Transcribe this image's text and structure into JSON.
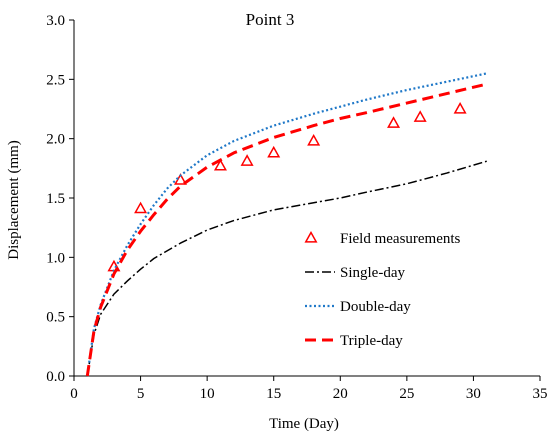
{
  "chart_data": {
    "type": "line",
    "title": "Point 3",
    "xlabel": "Time (Day)",
    "ylabel": "Displacement (mm)",
    "xlim": [
      0,
      35
    ],
    "ylim": [
      0,
      3.0
    ],
    "xticks": [
      0,
      5,
      10,
      15,
      20,
      25,
      30,
      35
    ],
    "yticks": [
      0.0,
      0.5,
      1.0,
      1.5,
      2.0,
      2.5,
      3.0
    ],
    "xtick_labels": [
      "0",
      "5",
      "10",
      "15",
      "20",
      "25",
      "30",
      "35"
    ],
    "ytick_labels": [
      "0.0",
      "0.5",
      "1.0",
      "1.5",
      "2.0",
      "2.5",
      "3.0"
    ],
    "grid": false,
    "legend_position": "right",
    "series": [
      {
        "name": "Field measurements",
        "kind": "scatter",
        "marker": "open-triangle",
        "color": "#ff0000",
        "x": [
          3,
          5,
          8,
          11,
          13,
          15,
          18,
          24,
          26,
          29
        ],
        "y": [
          0.92,
          1.41,
          1.65,
          1.77,
          1.81,
          1.88,
          1.98,
          2.13,
          2.18,
          2.25
        ]
      },
      {
        "name": "Single-day",
        "kind": "line",
        "style": "dash-dot",
        "color": "#000000",
        "x": [
          1,
          1.5,
          2,
          3,
          4,
          5,
          6,
          8,
          10,
          12,
          15,
          18,
          20,
          22,
          25,
          28,
          31
        ],
        "y": [
          0.0,
          0.35,
          0.52,
          0.69,
          0.8,
          0.9,
          0.99,
          1.12,
          1.23,
          1.31,
          1.4,
          1.46,
          1.5,
          1.55,
          1.62,
          1.71,
          1.81
        ]
      },
      {
        "name": "Double-day",
        "kind": "line",
        "style": "dotted",
        "color": "#1f78c8",
        "x": [
          1,
          1.5,
          2,
          3,
          4,
          5,
          6,
          7,
          8,
          10,
          12,
          15,
          18,
          20,
          22,
          25,
          28,
          31
        ],
        "y": [
          0.0,
          0.4,
          0.6,
          0.89,
          1.1,
          1.28,
          1.44,
          1.58,
          1.69,
          1.86,
          1.98,
          2.11,
          2.21,
          2.27,
          2.33,
          2.41,
          2.48,
          2.55
        ]
      },
      {
        "name": "Triple-day",
        "kind": "line",
        "style": "dashed",
        "color": "#ff0000",
        "x": [
          1,
          1.5,
          2,
          3,
          4,
          5,
          6,
          7,
          8,
          10,
          12,
          15,
          18,
          20,
          22,
          25,
          28,
          31
        ],
        "y": [
          0.0,
          0.38,
          0.58,
          0.86,
          1.06,
          1.22,
          1.36,
          1.49,
          1.6,
          1.76,
          1.88,
          2.01,
          2.11,
          2.17,
          2.22,
          2.3,
          2.38,
          2.46
        ]
      }
    ]
  }
}
